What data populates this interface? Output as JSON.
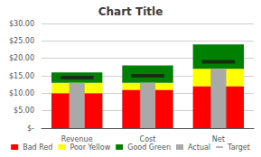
{
  "chart_data": {
    "type": "bar",
    "title": "Chart Title",
    "categories": [
      "Revenue",
      "Cost",
      "Net"
    ],
    "series": [
      {
        "name": "Bad Red",
        "type": "bar",
        "stacked": true,
        "color": "#FF0000",
        "values": [
          10.0,
          11.0,
          12.0
        ]
      },
      {
        "name": "Poor Yellow",
        "type": "bar",
        "stacked": true,
        "color": "#FFFF00",
        "values": [
          3.0,
          2.0,
          5.0
        ]
      },
      {
        "name": "Good Green",
        "type": "bar",
        "stacked": true,
        "color": "#008000",
        "values": [
          3.0,
          5.0,
          7.0
        ]
      },
      {
        "name": "Actual",
        "type": "bar",
        "color": "#A9A9A9",
        "values": [
          13.0,
          13.0,
          17.0
        ]
      },
      {
        "name": "Target",
        "type": "scatter",
        "marker": "line",
        "color": "#1A1A1A",
        "values": [
          14.5,
          15.0,
          19.0
        ]
      }
    ],
    "ylim": [
      0,
      30
    ],
    "yticks": [
      {
        "value": 0,
        "label": "$-"
      },
      {
        "value": 5,
        "label": "$5.00"
      },
      {
        "value": 10,
        "label": "$10.00"
      },
      {
        "value": 15,
        "label": "$15.00"
      },
      {
        "value": 20,
        "label": "$20.00"
      },
      {
        "value": 25,
        "label": "$25.00"
      },
      {
        "value": 30,
        "label": "$30.00"
      }
    ],
    "grid": true,
    "legend": "bottom"
  }
}
